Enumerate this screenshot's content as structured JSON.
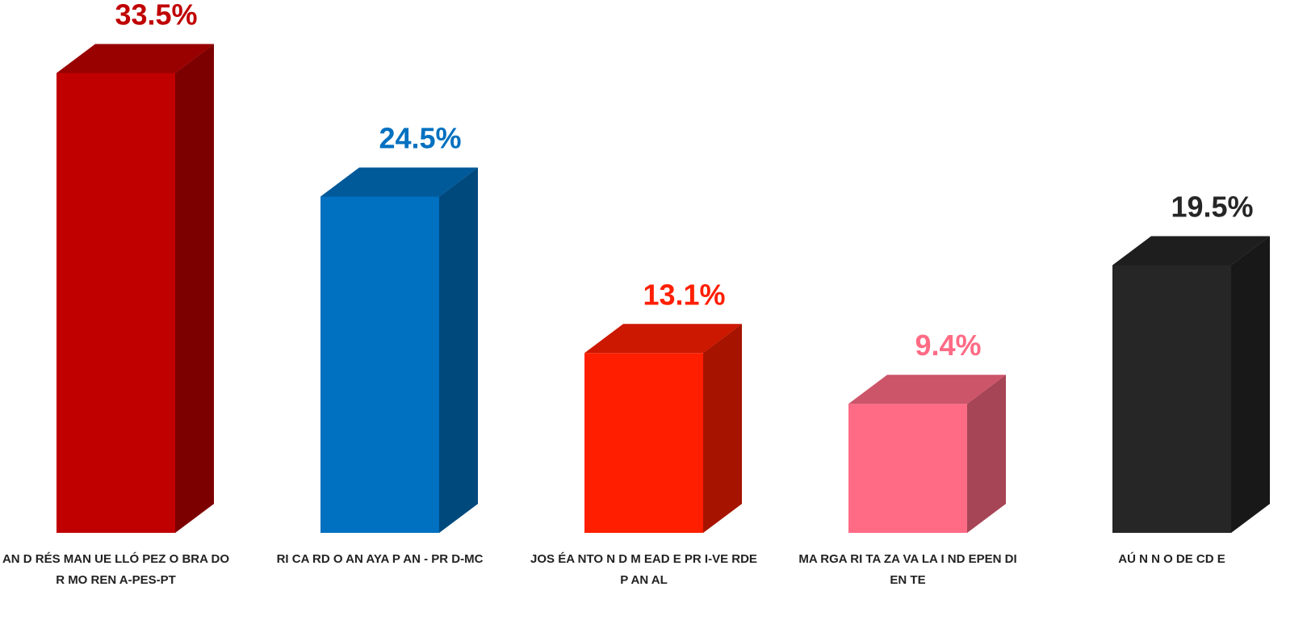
{
  "chart_data": {
    "type": "bar3d",
    "categories": [
      "AN D RÉS MAN UE LLÓ PEZ O BRA DO R MO REN A-PES-PT",
      "RI CA RD O AN AYA P AN - PR D-MC",
      "JOS ÉA NTO N D M EAD E PR I-VE RDE P AN AL",
      "MA RGA RI TA ZA VA LA I ND EPEN DI EN TE",
      "AÚ N N O DE CD E"
    ],
    "values": [
      33.5,
      24.5,
      13.1,
      9.4,
      19.5
    ],
    "value_labels": [
      "33.5%",
      "24.5%",
      "13.1%",
      "9.4%",
      "19.5%"
    ],
    "colors": [
      "#c00000",
      "#0070c0",
      "#ff1f00",
      "#ff6b85",
      "#262626"
    ],
    "label_colors": [
      "#c00000",
      "#0070c0",
      "#ff1f00",
      "#ff6b85",
      "#262626"
    ]
  }
}
